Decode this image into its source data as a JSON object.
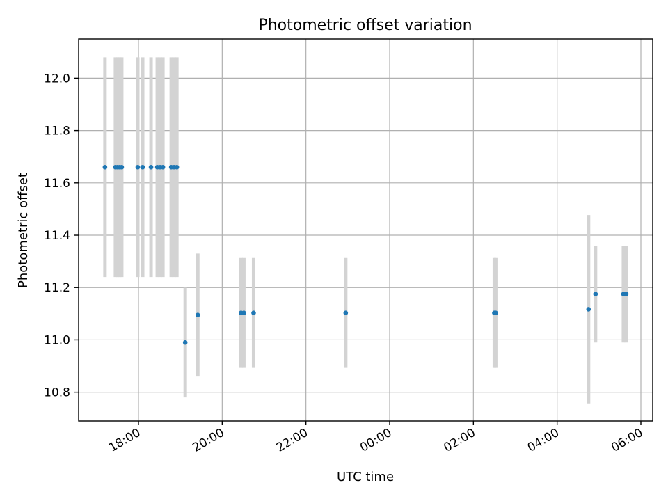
{
  "chart_data": {
    "type": "scatter",
    "title": "Photometric offset variation",
    "xlabel": "UTC time",
    "ylabel": "Photometric offset",
    "x_ticks": [
      "18:00",
      "20:00",
      "22:00",
      "00:00",
      "02:00",
      "04:00",
      "06:00"
    ],
    "y_ticks": [
      "10.8",
      "11.0",
      "11.2",
      "11.4",
      "11.6",
      "11.8",
      "12.0"
    ],
    "ylim": [
      10.69,
      12.15
    ],
    "grid": true,
    "marker_color": "#1f77b4",
    "errorbar_color": "#d3d3d3",
    "points": [
      {
        "t": "17:12",
        "y": 11.66,
        "err": 0.42
      },
      {
        "t": "17:27",
        "y": 11.66,
        "err": 0.42
      },
      {
        "t": "17:30",
        "y": 11.66,
        "err": 0.42
      },
      {
        "t": "17:33",
        "y": 11.66,
        "err": 0.42
      },
      {
        "t": "17:36",
        "y": 11.66,
        "err": 0.42
      },
      {
        "t": "17:59",
        "y": 11.66,
        "err": 0.42
      },
      {
        "t": "18:06",
        "y": 11.66,
        "err": 0.42
      },
      {
        "t": "18:18",
        "y": 11.66,
        "err": 0.42
      },
      {
        "t": "18:27",
        "y": 11.66,
        "err": 0.42
      },
      {
        "t": "18:31",
        "y": 11.66,
        "err": 0.42
      },
      {
        "t": "18:35",
        "y": 11.66,
        "err": 0.42
      },
      {
        "t": "18:47",
        "y": 11.66,
        "err": 0.42
      },
      {
        "t": "18:51",
        "y": 11.66,
        "err": 0.42
      },
      {
        "t": "18:55",
        "y": 11.66,
        "err": 0.42
      },
      {
        "t": "19:07",
        "y": 10.99,
        "err": 0.21
      },
      {
        "t": "19:25",
        "y": 11.095,
        "err": 0.235
      },
      {
        "t": "20:27",
        "y": 11.103,
        "err": 0.21
      },
      {
        "t": "20:31",
        "y": 11.103,
        "err": 0.21
      },
      {
        "t": "20:45",
        "y": 11.103,
        "err": 0.21
      },
      {
        "t": "22:57",
        "y": 11.103,
        "err": 0.21
      },
      {
        "t": "02:30",
        "y": 11.103,
        "err": 0.21
      },
      {
        "t": "02:32",
        "y": 11.103,
        "err": 0.21
      },
      {
        "t": "04:45",
        "y": 11.117,
        "err": 0.36
      },
      {
        "t": "04:55",
        "y": 11.175,
        "err": 0.185
      },
      {
        "t": "05:35",
        "y": 11.175,
        "err": 0.185
      },
      {
        "t": "05:39",
        "y": 11.175,
        "err": 0.185
      }
    ]
  }
}
